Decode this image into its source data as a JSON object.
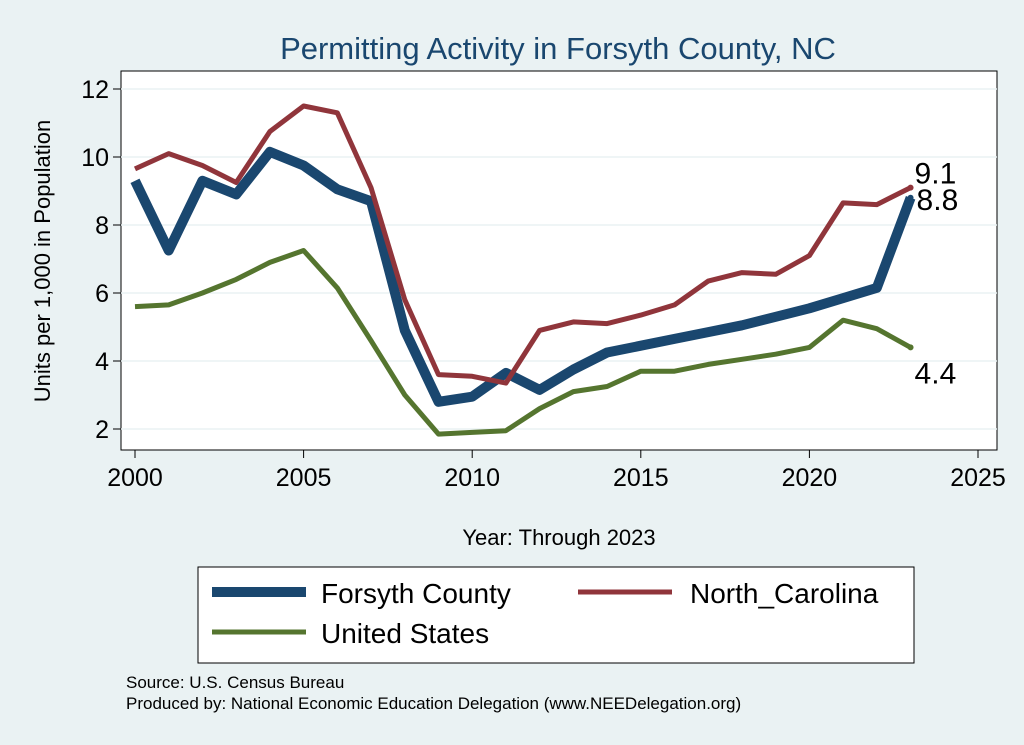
{
  "chart_data": {
    "type": "line",
    "title": "Permitting Activity in Forsyth County, NC",
    "xlabel": "Year: Through 2023",
    "ylabel": "Units per 1,000 in Population",
    "xlim": [
      2000,
      2025
    ],
    "ylim": [
      1.7,
      12.5
    ],
    "x_ticks": [
      2000,
      2005,
      2010,
      2015,
      2020,
      2025
    ],
    "y_ticks": [
      2,
      4,
      6,
      8,
      10,
      12
    ],
    "grid": true,
    "legend_position": "bottom",
    "series": [
      {
        "name": "Forsyth County",
        "color": "#1a476f",
        "x": [
          2000,
          2001,
          2002,
          2003,
          2004,
          2005,
          2006,
          2007,
          2008,
          2009,
          2010,
          2011,
          2012,
          2013,
          2014,
          2015,
          2016,
          2017,
          2018,
          2019,
          2020,
          2021,
          2022,
          2023
        ],
        "values": [
          9.3,
          7.25,
          9.3,
          8.9,
          10.15,
          9.75,
          9.05,
          8.7,
          4.9,
          2.8,
          2.95,
          3.65,
          3.15,
          3.75,
          4.25,
          4.45,
          4.65,
          4.85,
          5.05,
          5.3,
          5.55,
          5.85,
          6.15,
          8.8
        ],
        "end_label": "8.8"
      },
      {
        "name": "North_Carolina",
        "color": "#90353b",
        "x": [
          2000,
          2001,
          2002,
          2003,
          2004,
          2005,
          2006,
          2007,
          2008,
          2009,
          2010,
          2011,
          2012,
          2013,
          2014,
          2015,
          2016,
          2017,
          2018,
          2019,
          2020,
          2021,
          2022,
          2023
        ],
        "values": [
          9.65,
          10.1,
          9.75,
          9.25,
          10.75,
          11.5,
          11.3,
          9.1,
          5.8,
          3.6,
          3.55,
          3.35,
          4.9,
          5.15,
          5.1,
          5.35,
          5.65,
          6.35,
          6.6,
          6.55,
          7.1,
          8.65,
          8.6,
          9.1
        ],
        "end_label": "9.1"
      },
      {
        "name": "United States",
        "color": "#55752f",
        "x": [
          2000,
          2001,
          2002,
          2003,
          2004,
          2005,
          2006,
          2007,
          2008,
          2009,
          2010,
          2011,
          2012,
          2013,
          2014,
          2015,
          2016,
          2017,
          2018,
          2019,
          2020,
          2021,
          2022,
          2023
        ],
        "values": [
          5.6,
          5.65,
          6.0,
          6.4,
          6.9,
          7.25,
          6.15,
          4.6,
          3.0,
          1.85,
          1.9,
          1.95,
          2.6,
          3.1,
          3.25,
          3.7,
          3.7,
          3.9,
          4.05,
          4.2,
          4.4,
          5.2,
          4.95,
          4.4
        ],
        "end_label": "4.4"
      }
    ]
  },
  "notes": {
    "source": "Source: U.S. Census Bureau",
    "produced_by": "Produced by: National Economic Education Delegation (www.NEEDelegation.org)"
  }
}
